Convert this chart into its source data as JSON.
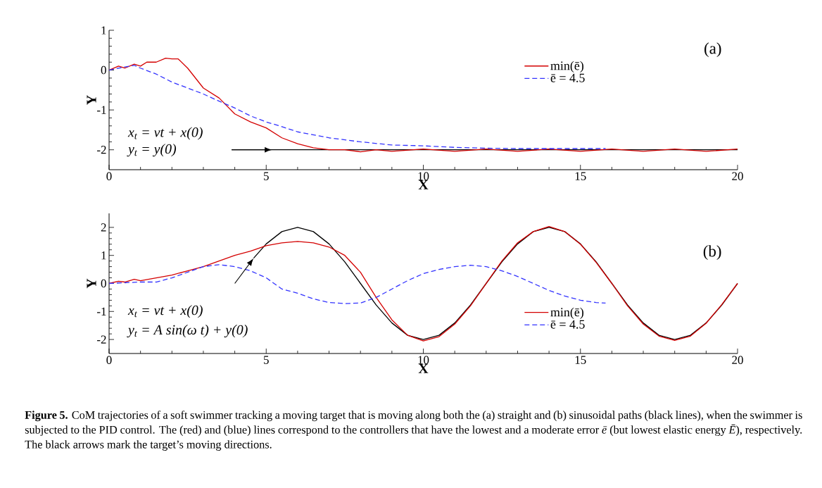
{
  "chart_data": [
    {
      "type": "line",
      "xlabel": "X",
      "ylabel": "Y",
      "xlim": [
        0,
        20
      ],
      "ylim": [
        -2.5,
        1
      ],
      "xticks": [
        0,
        5,
        10,
        15,
        20
      ],
      "yticks": [
        -2,
        -1,
        0,
        1
      ],
      "legend": "top",
      "annotations": [
        "(a)",
        "x$_{t}$ = vt + x(0)",
        "y$_{t}$ = y(0)"
      ],
      "series": [
        {
          "color": "#000000",
          "line_style": "solid",
          "x": [
            3.9,
            20
          ],
          "values": [
            -2,
            -2
          ]
        },
        {
          "name": "min(ē)",
          "color": "#d40000",
          "line_style": "solid",
          "x": [
            0,
            0.3,
            0.5,
            0.8,
            1,
            1.2,
            1.5,
            1.8,
            2,
            2.2,
            2.5,
            3,
            3.5,
            4,
            4.5,
            5,
            5.5,
            6,
            6.5,
            7,
            7.5,
            8,
            8.5,
            9,
            10,
            11,
            12,
            13,
            14,
            15,
            16,
            17,
            18,
            19,
            20
          ],
          "values": [
            0,
            0.1,
            0.05,
            0.15,
            0.1,
            0.2,
            0.2,
            0.3,
            0.28,
            0.28,
            0.05,
            -0.45,
            -0.7,
            -1.1,
            -1.3,
            -1.45,
            -1.7,
            -1.85,
            -1.95,
            -2.0,
            -2.0,
            -2.05,
            -2.0,
            -2.04,
            -1.98,
            -2.04,
            -1.98,
            -2.04,
            -1.98,
            -2.04,
            -1.98,
            -2.04,
            -1.98,
            -2.04,
            -1.98
          ]
        },
        {
          "name": "ē = 4.5",
          "color": "#3333ff",
          "line_style": "dashed",
          "x": [
            0,
            0.5,
            0.8,
            1,
            1.5,
            2,
            2.5,
            3,
            3.5,
            4,
            4.5,
            5,
            5.5,
            6,
            7,
            8,
            9,
            10,
            11,
            12,
            13,
            14,
            15,
            15.8
          ],
          "values": [
            0,
            0.08,
            0.12,
            0.05,
            -0.1,
            -0.3,
            -0.45,
            -0.6,
            -0.78,
            -0.95,
            -1.15,
            -1.3,
            -1.42,
            -1.55,
            -1.7,
            -1.8,
            -1.88,
            -1.9,
            -1.94,
            -1.96,
            -1.97,
            -1.97,
            -1.97,
            -1.97
          ]
        }
      ]
    },
    {
      "type": "line",
      "xlabel": "X",
      "ylabel": "Y",
      "xlim": [
        0,
        20
      ],
      "ylim": [
        -2.5,
        2.5
      ],
      "xticks": [
        0,
        5,
        10,
        15,
        20
      ],
      "yticks": [
        -2,
        -1,
        0,
        1,
        2
      ],
      "legend": "bottom",
      "annotations": [
        "(b)",
        "x$_{t}$ = vt + x(0)",
        "y$_{t}$ = A sin(ω t) + y(0)",
        "**Figure 5.** CoM trajectories of a soft swimmer tracking a moving target that is moving along both the (a) straight and (b) sinusoidal paths (black lines), when the swimmer is subjected to the PID control. The (red) and (blue) lines correspond to the controllers that have the lowest and a moderate error *ē* (but lowest elastic energy *Ē*), respectively. The black arrows mark the target’s moving directions."
      ],
      "series": [
        {
          "color": "#000000",
          "line_style": "solid",
          "x": [
            4.6,
            5,
            5.5,
            6,
            6.5,
            7,
            7.5,
            8,
            8.5,
            9,
            9.5,
            10,
            10.5,
            11,
            11.5,
            12,
            12.5,
            13,
            13.5,
            14,
            14.5,
            15,
            15.5,
            16,
            16.5,
            17,
            17.5,
            18,
            18.5,
            19,
            19.5,
            20
          ],
          "values": [
            0.9,
            1.41,
            1.85,
            2,
            1.85,
            1.41,
            0.77,
            0,
            -0.77,
            -1.41,
            -1.85,
            -2,
            -1.85,
            -1.41,
            -0.77,
            0,
            0.77,
            1.41,
            1.85,
            2,
            1.85,
            1.41,
            0.77,
            0,
            -0.77,
            -1.41,
            -1.85,
            -2,
            -1.85,
            -1.41,
            -0.77,
            0
          ]
        },
        {
          "name": "min(ē)",
          "color": "#d40000",
          "line_style": "solid",
          "x": [
            0,
            0.3,
            0.5,
            0.8,
            1,
            1.5,
            2,
            2.5,
            3,
            3.5,
            4,
            4.5,
            5,
            5.5,
            6,
            6.5,
            7,
            7.5,
            8,
            8.5,
            9,
            9.5,
            10,
            10.5,
            11,
            11.5,
            12,
            12.5,
            13,
            13.5,
            14,
            14.5,
            15,
            15.5,
            16,
            16.5,
            17,
            17.5,
            18,
            18.5,
            19,
            19.5,
            20
          ],
          "values": [
            0,
            0.08,
            0.05,
            0.15,
            0.1,
            0.2,
            0.3,
            0.45,
            0.6,
            0.8,
            1.0,
            1.15,
            1.35,
            1.45,
            1.5,
            1.45,
            1.3,
            1.0,
            0.4,
            -0.5,
            -1.3,
            -1.85,
            -2.05,
            -1.9,
            -1.45,
            -0.8,
            0,
            0.8,
            1.45,
            1.85,
            2.03,
            1.85,
            1.4,
            0.75,
            0,
            -0.8,
            -1.45,
            -1.88,
            -2.03,
            -1.88,
            -1.42,
            -0.75,
            0
          ]
        },
        {
          "name": "ē = 4.5",
          "color": "#3333ff",
          "line_style": "dashed",
          "x": [
            0,
            1,
            1.5,
            2,
            2.5,
            3,
            3.5,
            4,
            4.5,
            5,
            5.5,
            6,
            6.5,
            7,
            7.5,
            8,
            8.5,
            9,
            9.5,
            10,
            10.5,
            11,
            11.5,
            12,
            12.5,
            13,
            13.5,
            14,
            14.5,
            15,
            15.5,
            15.8
          ],
          "values": [
            0,
            0.05,
            0.05,
            0.2,
            0.4,
            0.6,
            0.67,
            0.6,
            0.45,
            0.2,
            -0.2,
            -0.35,
            -0.55,
            -0.68,
            -0.72,
            -0.7,
            -0.5,
            -0.2,
            0.1,
            0.35,
            0.5,
            0.6,
            0.65,
            0.6,
            0.45,
            0.25,
            0,
            -0.25,
            -0.45,
            -0.6,
            -0.68,
            -0.7
          ]
        }
      ]
    }
  ]
}
